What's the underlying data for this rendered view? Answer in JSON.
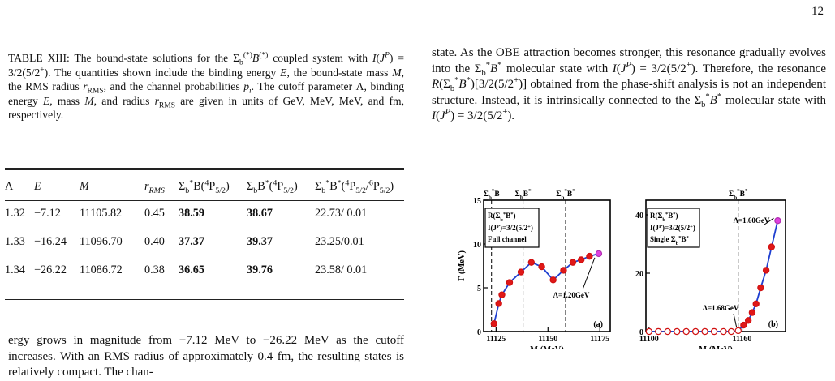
{
  "page_number": "12",
  "caption": {
    "html": "TABLE XIII: The bound-state solutions for the Σ<sub>b</sub><sup>(*)</sup><i>B</i><sup>(*)</sup> coupled system with <i>I</i>(<i>J</i><sup><i>P</i></sup>) = 3/2(5/2<sup>+</sup>). The quantities shown include the binding energy <i>E</i>, the bound-state mass <i>M</i>, the RMS radius <i>r</i><sub>RMS</sub>, and the channel probabilities <i>p<sub>i</sub></i>. The cutoff parameter Λ, binding energy <i>E</i>, mass <i>M</i>, and radius <i>r</i><sub>RMS</sub> are given in units of GeV, MeV, MeV, and fm, respectively."
  },
  "table": {
    "headers": [
      "Λ",
      "E",
      "M",
      "r<sub>RMS</sub>",
      "Σ<sub>b</sub><sup>*</sup>B(<sup>4</sup>P<sub>5/2</sub>)",
      "Σ<sub>b</sub>B<sup>*</sup>(<sup>4</sup>P<sub>5/2</sub>)",
      "Σ<sub>b</sub><sup>*</sup>B<sup>*</sup>(<sup>4</sup>P<sub>5/2</sub>/<sup>6</sup>P<sub>5/2</sub>)"
    ],
    "rows": [
      [
        "1.32",
        "−7.12",
        "11105.82",
        "0.45",
        "38.59",
        "38.67",
        "22.73/ 0.01"
      ],
      [
        "1.33",
        "−16.24",
        "11096.70",
        "0.40",
        "37.37",
        "39.37",
        "23.25/0.01"
      ],
      [
        "1.34",
        "−26.22",
        "11086.72",
        "0.38",
        "36.65",
        "39.76",
        "23.58/ 0.01"
      ]
    ]
  },
  "bottom_text": "ergy grows in magnitude from −7.12 MeV to −26.22 MeV as the cutoff increases. With an RMS radius of approximately 0.4 fm, the resulting states is relatively compact. The chan-",
  "right_text": {
    "html": "state. As the OBE attraction becomes stronger, this resonance gradually evolves into the Σ<sub>b</sub><sup>*</sup><i>B</i><sup>*</sup> molecular state with <i>I</i>(<i>J</i><sup><i>P</i></sup>) = 3/2(5/2<sup>+</sup>). Therefore, the resonance <i>R</i>(Σ<sub>b</sub><sup>*</sup><i>B</i><sup>*</sup>)[3/2(5/2<sup>+</sup>)] obtained from the phase-shift analysis is not an independent structure. Instead, it is intrinsically connected to the Σ<sub>b</sub><sup>*</sup><i>B</i><sup>*</sup> molecular state with <i>I</i>(<i>J</i><sup><i>P</i></sup>) = 3/2(5/2<sup>+</sup>)."
  },
  "chart_data": [
    {
      "type": "line",
      "panel": "(a)",
      "xlabel": "M (MeV)",
      "ylabel": "Γ (MeV)",
      "xlim": [
        11119,
        11180
      ],
      "ylim": [
        0,
        15
      ],
      "xticks": [
        11125,
        11150,
        11175
      ],
      "yticks": [
        0,
        5,
        10,
        15
      ],
      "thresholds": [
        {
          "label": "Σ<tspan baseline-shift='sub' font-size='7'>b</tspan><tspan baseline-shift='super' font-size='7'>*</tspan>B",
          "x": 11122.8
        },
        {
          "label": "Σ<tspan baseline-shift='sub' font-size='7'>b</tspan>B<tspan baseline-shift='super' font-size='7'>*</tspan>",
          "x": 11138
        },
        {
          "label": "Σ<tspan baseline-shift='sub' font-size='7'>b</tspan><tspan baseline-shift='super' font-size='7'>*</tspan>B<tspan baseline-shift='super' font-size='7'>*</tspan>",
          "x": 11158.5
        }
      ],
      "legend_lines": [
        "R(Σb*B*)",
        "I(JP)=3/2(5/2+)",
        "Full channel"
      ],
      "annotation": "Λ=1.20GeV",
      "series": [
        {
          "x": [
            11124.0,
            11126.3,
            11127.8,
            11131.5,
            11137.0,
            11142.0,
            11147.0,
            11152.5,
            11157.5,
            11162.0,
            11166.0,
            11170.0,
            11174.5
          ],
          "y": [
            0.9,
            3.2,
            4.2,
            5.6,
            6.8,
            7.9,
            7.4,
            5.9,
            7.0,
            7.9,
            8.2,
            8.6,
            8.9
          ]
        }
      ]
    },
    {
      "type": "line",
      "panel": "(b)",
      "xlabel": "M (MeV)",
      "ylabel": "",
      "xlim": [
        11098,
        11188
      ],
      "ylim": [
        0,
        45
      ],
      "xticks": [
        11100,
        11160
      ],
      "yticks": [
        0,
        20,
        40
      ],
      "thresholds": [
        {
          "label": "Σ<tspan baseline-shift='sub' font-size='7'>b</tspan><tspan baseline-shift='super' font-size='7'>*</tspan>B<tspan baseline-shift='super' font-size='7'>*</tspan>",
          "x": 11157.5
        }
      ],
      "legend_lines": [
        "R(Σb*B*)",
        "I(JP)=3/2(5/2+)",
        "Single Σb*B*"
      ],
      "annotations": [
        "Λ=1.60GeV",
        "Λ=1.68GeV"
      ],
      "series": [
        {
          "x": [
            11100,
            11106,
            11112,
            11118,
            11124,
            11130,
            11136,
            11142,
            11148,
            11153,
            11157.5,
            11161,
            11164,
            11166.5,
            11169,
            11172,
            11175.5,
            11179,
            11183
          ],
          "y": [
            0,
            0,
            0,
            0,
            0,
            0,
            0,
            0,
            0,
            0,
            0.3,
            2.2,
            3.8,
            6.5,
            9.5,
            15.0,
            21.0,
            29.0,
            38.0
          ]
        }
      ]
    }
  ]
}
